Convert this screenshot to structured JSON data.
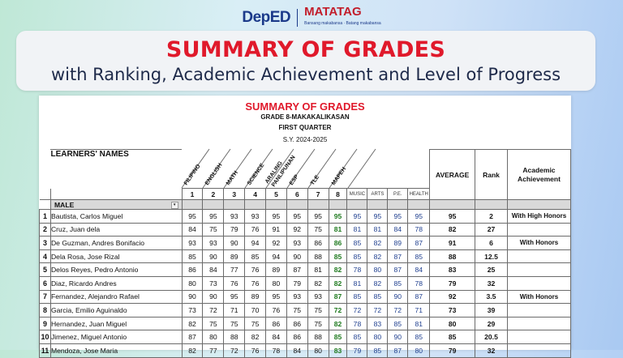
{
  "brand": {
    "deped_logo": "DepED",
    "matatag_logo": "MATATAG",
    "matatag_tagline": "Bansang makabansa · Batang makabansa"
  },
  "title_card": {
    "title": "SUMMARY OF GRADES",
    "subtitle": "with Ranking, Academic Achievement and Level of Progress"
  },
  "sheet": {
    "title": "SUMMARY OF GRADES",
    "grade_section": "GRADE 8-MAKAKALIKASAN",
    "quarter": "FIRST QUARTER",
    "school_year": "S.Y. 2024-2025",
    "headers": {
      "names": "LEARNERS' NAMES",
      "average": "AVERAGE",
      "rank": "Rank",
      "achievement": "Academic Achievement",
      "subjects": [
        "FILIPINO",
        "ENGLISH",
        "MATH",
        "SCIENCE",
        "ARALING PANLIPUNAN",
        "ESP",
        "TLE",
        "MAPEH"
      ],
      "subject_numbers": [
        "1",
        "2",
        "3",
        "4",
        "5",
        "6",
        "7",
        "8"
      ],
      "mapeh_sub": [
        "MUSIC",
        "ARTS",
        "P.E.",
        "HEALTH"
      ]
    },
    "group_label": "MALE",
    "rows": [
      {
        "no": "1",
        "name": "Bautista, Carlos Miguel",
        "g": [
          "95",
          "95",
          "93",
          "93",
          "95",
          "95",
          "95",
          "95"
        ],
        "m": [
          "95",
          "95",
          "95",
          "95"
        ],
        "avg": "95",
        "rank": "2",
        "ach": "With High Honors"
      },
      {
        "no": "2",
        "name": "Cruz, Juan dela",
        "g": [
          "84",
          "75",
          "79",
          "76",
          "91",
          "92",
          "75",
          "81"
        ],
        "m": [
          "81",
          "81",
          "84",
          "78"
        ],
        "avg": "82",
        "rank": "27",
        "ach": ""
      },
      {
        "no": "3",
        "name": "De Guzman, Andres Bonifacio",
        "g": [
          "93",
          "93",
          "90",
          "94",
          "92",
          "93",
          "86",
          "86"
        ],
        "m": [
          "85",
          "82",
          "89",
          "87"
        ],
        "avg": "91",
        "rank": "6",
        "ach": "With Honors"
      },
      {
        "no": "4",
        "name": "Dela Rosa, Jose Rizal",
        "g": [
          "85",
          "90",
          "89",
          "85",
          "94",
          "90",
          "88",
          "85"
        ],
        "m": [
          "85",
          "82",
          "87",
          "85"
        ],
        "avg": "88",
        "rank": "12.5",
        "ach": ""
      },
      {
        "no": "5",
        "name": "Delos Reyes, Pedro Antonio",
        "g": [
          "86",
          "84",
          "77",
          "76",
          "89",
          "87",
          "81",
          "82"
        ],
        "m": [
          "78",
          "80",
          "87",
          "84"
        ],
        "avg": "83",
        "rank": "25",
        "ach": ""
      },
      {
        "no": "6",
        "name": "Diaz, Ricardo Andres",
        "g": [
          "80",
          "73",
          "76",
          "76",
          "80",
          "79",
          "82",
          "82"
        ],
        "m": [
          "81",
          "82",
          "85",
          "78"
        ],
        "avg": "79",
        "rank": "32",
        "ach": ""
      },
      {
        "no": "7",
        "name": "Fernandez, Alejandro Rafael",
        "g": [
          "90",
          "90",
          "95",
          "89",
          "95",
          "93",
          "93",
          "87"
        ],
        "m": [
          "85",
          "85",
          "90",
          "87"
        ],
        "avg": "92",
        "rank": "3.5",
        "ach": "With Honors"
      },
      {
        "no": "8",
        "name": "Garcia, Emilio Aguinaldo",
        "g": [
          "73",
          "72",
          "71",
          "70",
          "76",
          "75",
          "75",
          "72"
        ],
        "m": [
          "72",
          "72",
          "72",
          "71"
        ],
        "avg": "73",
        "rank": "39",
        "ach": ""
      },
      {
        "no": "9",
        "name": "Hernandez, Juan Miguel",
        "g": [
          "82",
          "75",
          "75",
          "75",
          "86",
          "86",
          "75",
          "82"
        ],
        "m": [
          "78",
          "83",
          "85",
          "81"
        ],
        "avg": "80",
        "rank": "29",
        "ach": ""
      },
      {
        "no": "10",
        "name": "Jimenez, Miguel Antonio",
        "g": [
          "87",
          "80",
          "88",
          "82",
          "84",
          "86",
          "88",
          "85"
        ],
        "m": [
          "85",
          "80",
          "90",
          "85"
        ],
        "avg": "85",
        "rank": "20.5",
        "ach": ""
      },
      {
        "no": "11",
        "name": "Mendoza, Jose Maria",
        "g": [
          "82",
          "77",
          "72",
          "76",
          "78",
          "84",
          "80",
          "83"
        ],
        "m": [
          "79",
          "85",
          "87",
          "80"
        ],
        "avg": "79",
        "rank": "32",
        "ach": ""
      }
    ]
  },
  "colors": {
    "title_red": "#e0192b",
    "mapeh_green": "#1f7a1f",
    "mapeh_sub_blue": "#1f3f8f"
  }
}
